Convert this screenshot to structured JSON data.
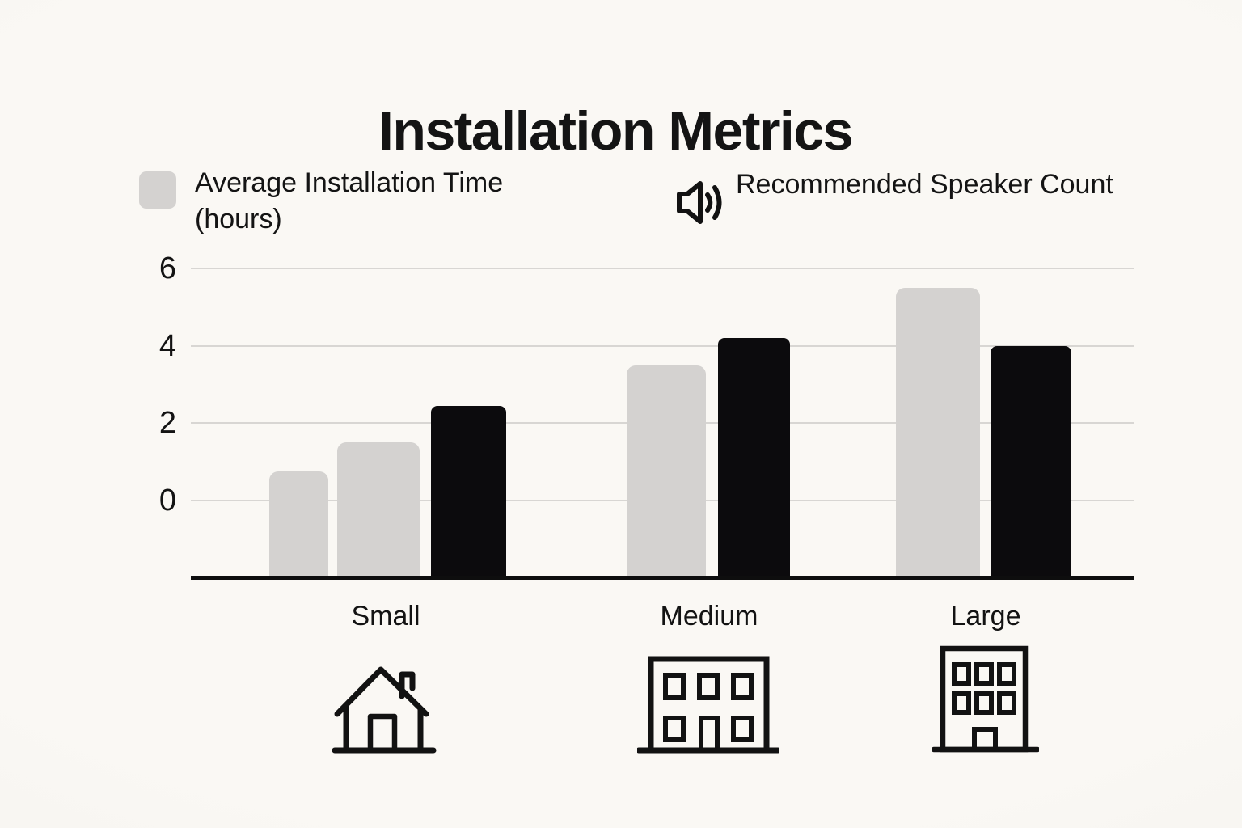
{
  "page": {
    "background": "#f8f6f2"
  },
  "chart_data": {
    "type": "bar",
    "title": "Installation Metrics",
    "categories": [
      "Small",
      "Medium",
      "Large"
    ],
    "series": [
      {
        "name": "Average Installation Time (hours)",
        "color": "#d4d2d0",
        "values": [
          1.5,
          3.5,
          5.5
        ]
      },
      {
        "name": "Recommended Speaker Count",
        "color": "#0c0b0d",
        "values": [
          2.45,
          4.2,
          4.0
        ]
      }
    ],
    "artifact_bars": [
      {
        "category": "Small",
        "series": "Average Installation Time (hours)",
        "value": 0.75
      }
    ],
    "yticks": [
      0,
      2,
      4,
      6
    ],
    "ylim": [
      0,
      6
    ],
    "grid": true,
    "legend_position": "top",
    "gridline_color": "#d8d6d3",
    "axis_color": "#0e0e0e"
  },
  "legend": {
    "items": [
      {
        "icon": "gray-swatch",
        "swatch_color": "#d4d2d0",
        "label_lines": [
          "Average Installation Time",
          "(hours)"
        ]
      },
      {
        "icon": "speaker-icon",
        "label_lines": [
          "Recommended Speaker Count"
        ]
      }
    ]
  },
  "categories": [
    {
      "label": "Small",
      "icon": "house-icon"
    },
    {
      "label": "Medium",
      "icon": "building-2-story-icon"
    },
    {
      "label": "Large",
      "icon": "building-3-story-icon"
    }
  ]
}
